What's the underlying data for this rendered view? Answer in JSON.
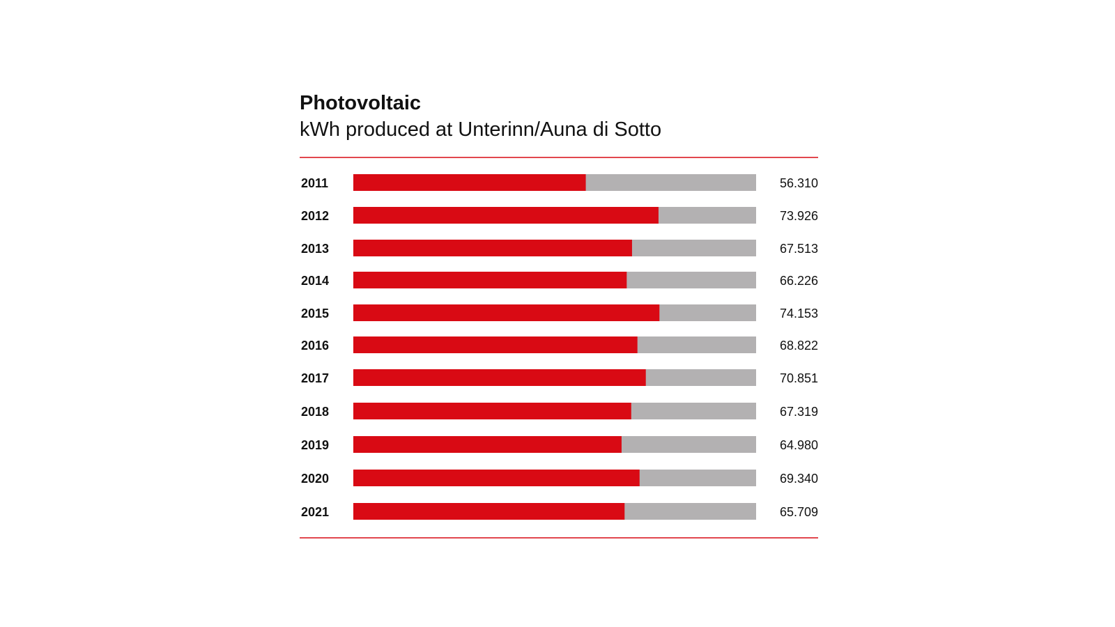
{
  "chart_data": {
    "type": "bar",
    "orientation": "horizontal",
    "title": "Photovoltaic",
    "subtitle": "kWh produced at Unterinn/Auna di Sotto",
    "categories": [
      "2011",
      "2012",
      "2013",
      "2014",
      "2015",
      "2016",
      "2017",
      "2018",
      "2019",
      "2020",
      "2021"
    ],
    "values": [
      56310,
      73926,
      67513,
      66226,
      74153,
      68822,
      70851,
      67319,
      64980,
      69340,
      65709
    ],
    "value_labels": [
      "56.310",
      "73.926",
      "67.513",
      "66.226",
      "74.153",
      "68.822",
      "70.851",
      "67.319",
      "64.980",
      "69.340",
      "65.709"
    ],
    "xlabel": "",
    "ylabel": "",
    "grid": false,
    "legend": "none",
    "colors": {
      "bar": "#d90a14",
      "track": "#b3b1b2",
      "rule": "#d90a14",
      "text": "#111111"
    }
  }
}
